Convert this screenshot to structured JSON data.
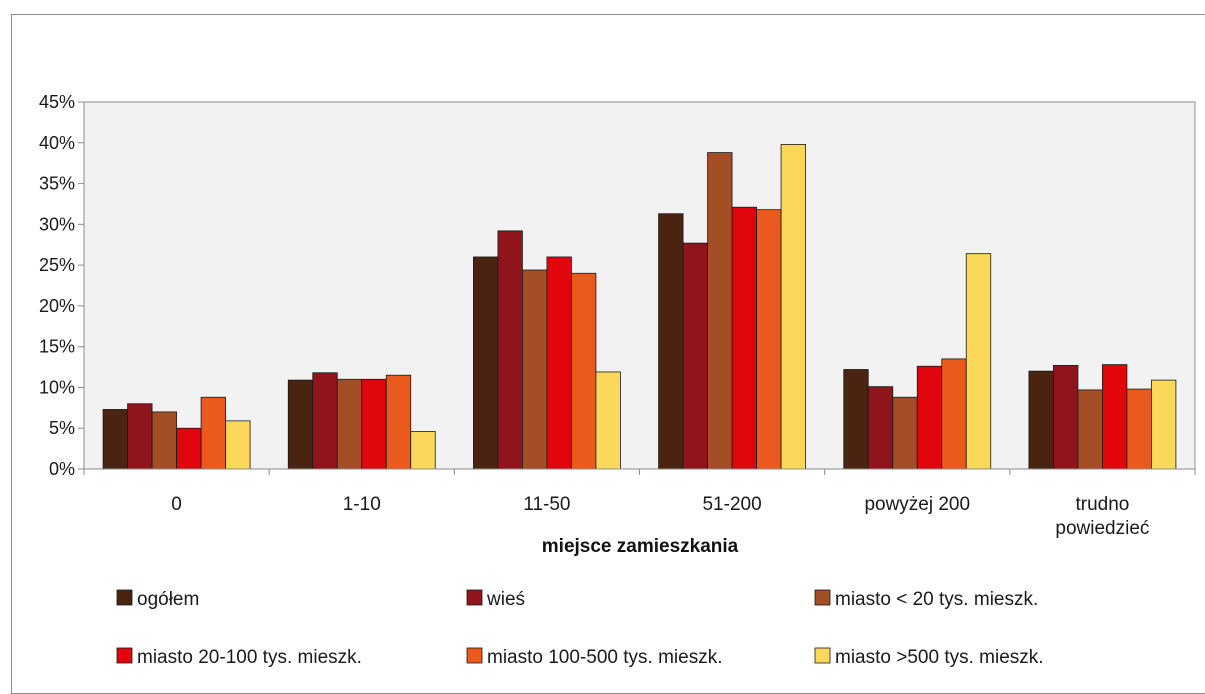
{
  "chart_data": {
    "type": "bar",
    "xlabel": "miejsce zamieszkania",
    "ylabel": "",
    "ylim": [
      0,
      45
    ],
    "yticks": [
      "0%",
      "5%",
      "10%",
      "15%",
      "20%",
      "25%",
      "30%",
      "35%",
      "40%",
      "45%"
    ],
    "grid": false,
    "legend_position": "bottom",
    "categories": [
      "0",
      "1-10",
      "11-50",
      "51-200",
      "powyżej 200",
      [
        "trudno",
        "powiedzieć"
      ]
    ],
    "series": [
      {
        "name": "ogółem",
        "color": "#4a2410",
        "values": [
          7.3,
          10.9,
          26.0,
          31.3,
          12.2,
          12.0
        ]
      },
      {
        "name": "wieś",
        "color": "#8f141c",
        "values": [
          8.0,
          11.8,
          29.2,
          27.7,
          10.1,
          12.7
        ]
      },
      {
        "name": "miasto < 20 tys. mieszk.",
        "color": "#a34e24",
        "values": [
          7.0,
          11.0,
          24.4,
          38.8,
          8.8,
          9.7
        ]
      },
      {
        "name": "miasto 20-100 tys. mieszk.",
        "color": "#e0060c",
        "values": [
          5.0,
          11.0,
          26.0,
          32.1,
          12.6,
          12.8
        ]
      },
      {
        "name": "miasto 100-500 tys. mieszk.",
        "color": "#ea5a1c",
        "values": [
          8.8,
          11.5,
          24.0,
          31.8,
          13.5,
          9.8
        ]
      },
      {
        "name": "miasto >500 tys. mieszk.",
        "color": "#fbd75a",
        "values": [
          5.9,
          4.6,
          11.9,
          39.8,
          26.4,
          10.9
        ]
      }
    ]
  }
}
